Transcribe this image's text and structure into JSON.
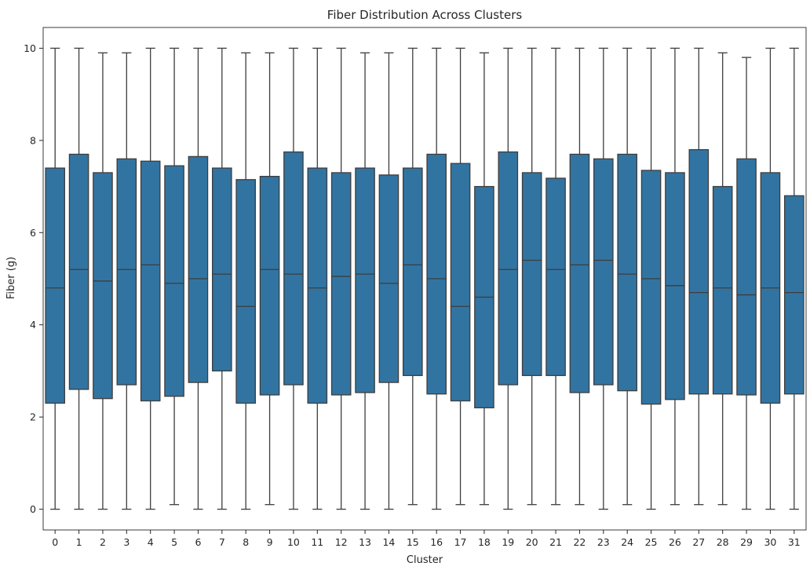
{
  "chart_data": {
    "type": "boxplot",
    "title": "Fiber Distribution Across Clusters",
    "xlabel": "Cluster",
    "ylabel": "Fiber (g)",
    "ylim": [
      -0.45,
      10.45
    ],
    "yticks": [
      0,
      2,
      4,
      6,
      8,
      10
    ],
    "grid": false,
    "legend": "none",
    "box_color": "#3274a1",
    "line_color": "#3d3d3d",
    "categories": [
      "0",
      "1",
      "2",
      "3",
      "4",
      "5",
      "6",
      "7",
      "8",
      "9",
      "10",
      "11",
      "12",
      "13",
      "14",
      "15",
      "16",
      "17",
      "18",
      "19",
      "20",
      "21",
      "22",
      "23",
      "24",
      "25",
      "26",
      "27",
      "28",
      "29",
      "30",
      "31"
    ],
    "boxes": [
      {
        "min": 0.0,
        "q1": 2.3,
        "median": 4.8,
        "q3": 7.4,
        "max": 10.0
      },
      {
        "min": 0.0,
        "q1": 2.6,
        "median": 5.2,
        "q3": 7.7,
        "max": 10.0
      },
      {
        "min": 0.0,
        "q1": 2.4,
        "median": 4.95,
        "q3": 7.3,
        "max": 9.9
      },
      {
        "min": 0.0,
        "q1": 2.7,
        "median": 5.2,
        "q3": 7.6,
        "max": 9.9
      },
      {
        "min": 0.0,
        "q1": 2.35,
        "median": 5.3,
        "q3": 7.55,
        "max": 10.0
      },
      {
        "min": 0.1,
        "q1": 2.45,
        "median": 4.9,
        "q3": 7.45,
        "max": 10.0
      },
      {
        "min": 0.0,
        "q1": 2.75,
        "median": 5.0,
        "q3": 7.65,
        "max": 10.0
      },
      {
        "min": 0.0,
        "q1": 3.0,
        "median": 5.1,
        "q3": 7.4,
        "max": 10.0
      },
      {
        "min": 0.0,
        "q1": 2.3,
        "median": 4.4,
        "q3": 7.15,
        "max": 9.9
      },
      {
        "min": 0.1,
        "q1": 2.48,
        "median": 5.2,
        "q3": 7.22,
        "max": 9.9
      },
      {
        "min": 0.0,
        "q1": 2.7,
        "median": 5.1,
        "q3": 7.75,
        "max": 10.0
      },
      {
        "min": 0.0,
        "q1": 2.3,
        "median": 4.8,
        "q3": 7.4,
        "max": 10.0
      },
      {
        "min": 0.0,
        "q1": 2.48,
        "median": 5.05,
        "q3": 7.3,
        "max": 10.0
      },
      {
        "min": 0.0,
        "q1": 2.53,
        "median": 5.1,
        "q3": 7.4,
        "max": 9.9
      },
      {
        "min": 0.0,
        "q1": 2.75,
        "median": 4.9,
        "q3": 7.25,
        "max": 9.9
      },
      {
        "min": 0.1,
        "q1": 2.9,
        "median": 5.3,
        "q3": 7.4,
        "max": 10.0
      },
      {
        "min": 0.0,
        "q1": 2.5,
        "median": 5.0,
        "q3": 7.7,
        "max": 10.0
      },
      {
        "min": 0.1,
        "q1": 2.35,
        "median": 4.4,
        "q3": 7.5,
        "max": 10.0
      },
      {
        "min": 0.1,
        "q1": 2.2,
        "median": 4.6,
        "q3": 7.0,
        "max": 9.9
      },
      {
        "min": 0.0,
        "q1": 2.7,
        "median": 5.2,
        "q3": 7.75,
        "max": 10.0
      },
      {
        "min": 0.1,
        "q1": 2.9,
        "median": 5.4,
        "q3": 7.3,
        "max": 10.0
      },
      {
        "min": 0.1,
        "q1": 2.9,
        "median": 5.2,
        "q3": 7.18,
        "max": 10.0
      },
      {
        "min": 0.1,
        "q1": 2.53,
        "median": 5.3,
        "q3": 7.7,
        "max": 10.0
      },
      {
        "min": 0.0,
        "q1": 2.7,
        "median": 5.4,
        "q3": 7.6,
        "max": 10.0
      },
      {
        "min": 0.1,
        "q1": 2.57,
        "median": 5.1,
        "q3": 7.7,
        "max": 10.0
      },
      {
        "min": 0.0,
        "q1": 2.28,
        "median": 5.0,
        "q3": 7.35,
        "max": 10.0
      },
      {
        "min": 0.1,
        "q1": 2.38,
        "median": 4.85,
        "q3": 7.3,
        "max": 10.0
      },
      {
        "min": 0.1,
        "q1": 2.5,
        "median": 4.7,
        "q3": 7.8,
        "max": 10.0
      },
      {
        "min": 0.1,
        "q1": 2.5,
        "median": 4.8,
        "q3": 7.0,
        "max": 9.9
      },
      {
        "min": 0.0,
        "q1": 2.48,
        "median": 4.65,
        "q3": 7.6,
        "max": 9.8
      },
      {
        "min": 0.0,
        "q1": 2.3,
        "median": 4.8,
        "q3": 7.3,
        "max": 10.0
      },
      {
        "min": 0.0,
        "q1": 2.5,
        "median": 4.7,
        "q3": 6.8,
        "max": 10.0
      }
    ]
  }
}
